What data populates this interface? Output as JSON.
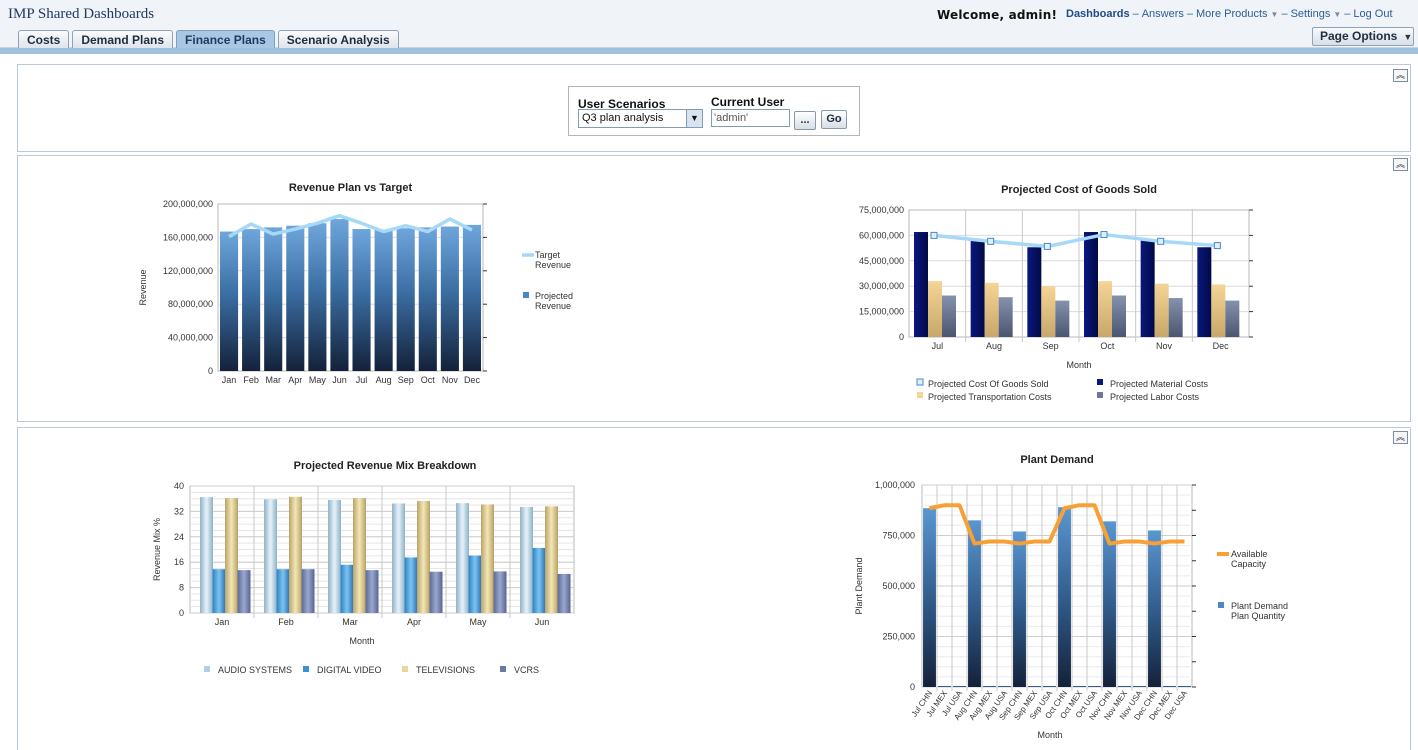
{
  "header": {
    "app_title": "IMP Shared Dashboards",
    "welcome": "Welcome, admin!",
    "links": [
      {
        "label": "Dashboards",
        "active": true,
        "caret": false
      },
      {
        "label": "Answers",
        "active": false,
        "caret": false
      },
      {
        "label": "More Products",
        "active": false,
        "caret": true
      },
      {
        "label": "Settings",
        "active": false,
        "caret": true
      },
      {
        "label": "Log Out",
        "active": false,
        "caret": false
      }
    ],
    "separator": "–",
    "caret_glyph": "▼"
  },
  "tabs": [
    {
      "label": "Costs",
      "selected": false
    },
    {
      "label": "Demand Plans",
      "selected": false
    },
    {
      "label": "Finance Plans",
      "selected": true
    },
    {
      "label": "Scenario Analysis",
      "selected": false
    }
  ],
  "page_options": {
    "label": "Page Options",
    "caret": "▼"
  },
  "prompt": {
    "scenario_label": "User Scenarios",
    "scenario_value": "Q3 plan analysis",
    "user_label": "Current User",
    "user_value": "'admin'",
    "browse_label": "...",
    "go_label": "Go"
  },
  "colors": {
    "accent": "#1f3a63",
    "tab_selected": "#a9c6e2",
    "bar_blue_top": "#5b9bd5",
    "bar_blue_bottom": "#1a2a44",
    "line_light_blue": "#9fd3f4",
    "line_orange": "#f7a035"
  },
  "chart_data": [
    {
      "type": "bar",
      "title": "Revenue Plan vs Target",
      "ylabel": "Revenue",
      "xlabel": "",
      "categories": [
        "Jan",
        "Feb",
        "Mar",
        "Apr",
        "May",
        "Jun",
        "Jul",
        "Aug",
        "Sep",
        "Oct",
        "Nov",
        "Dec"
      ],
      "ylim": [
        0,
        200000000
      ],
      "yticks": [
        "0",
        "40,000,000",
        "80,000,000",
        "120,000,000",
        "160,000,000",
        "200,000,000"
      ],
      "series": [
        {
          "name": "Projected Revenue",
          "kind": "bar",
          "values": [
            167000000,
            170000000,
            172000000,
            174000000,
            177000000,
            182000000,
            170000000,
            169000000,
            171000000,
            172000000,
            173000000,
            175000000
          ]
        },
        {
          "name": "Target Revenue",
          "kind": "line",
          "values": [
            161000000,
            176000000,
            164000000,
            170000000,
            177000000,
            186000000,
            177000000,
            167000000,
            174000000,
            167000000,
            182000000,
            169000000
          ]
        }
      ],
      "legend": [
        {
          "line1": "Target",
          "line2": "Revenue"
        },
        {
          "line1": "Projected",
          "line2": "Revenue"
        }
      ],
      "legend_position": "right"
    },
    {
      "type": "bar",
      "title": "Projected Cost of Goods Sold",
      "xlabel": "Month",
      "ylabel": "",
      "categories": [
        "Jul",
        "Aug",
        "Sep",
        "Oct",
        "Nov",
        "Dec"
      ],
      "ylim": [
        0,
        75000000
      ],
      "yticks": [
        "0",
        "15,000,000",
        "30,000,000",
        "45,000,000",
        "60,000,000",
        "75,000,000"
      ],
      "series": [
        {
          "name": "Projected Material Costs",
          "kind": "bar",
          "values": [
            62000000,
            57000000,
            53000000,
            62000000,
            57000000,
            53000000
          ]
        },
        {
          "name": "Projected Transportation Costs",
          "kind": "bar",
          "values": [
            33000000,
            32000000,
            30000000,
            33000000,
            31500000,
            31000000
          ]
        },
        {
          "name": "Projected Labor Costs",
          "kind": "bar",
          "values": [
            24500000,
            23500000,
            21500000,
            24500000,
            23000000,
            21500000
          ]
        },
        {
          "name": "Projected Cost Of Goods Sold",
          "kind": "line",
          "values": [
            60000000,
            56500000,
            53500000,
            60500000,
            56500000,
            54000000
          ]
        }
      ],
      "legend": [
        "Projected Cost Of Goods Sold",
        "Projected Material Costs",
        "Projected Transportation Costs",
        "Projected Labor Costs"
      ],
      "legend_position": "bottom"
    },
    {
      "type": "bar",
      "title": "Projected Revenue Mix Breakdown",
      "xlabel": "Month",
      "ylabel": "Revenue Mix %",
      "categories": [
        "Jan",
        "Feb",
        "Mar",
        "Apr",
        "May",
        "Jun"
      ],
      "ylim": [
        0,
        40
      ],
      "yticks": [
        "0",
        "8",
        "16",
        "24",
        "32",
        "40"
      ],
      "series": [
        {
          "name": "AUDIO SYSTEMS",
          "values": [
            36.5,
            35.8,
            35.6,
            34.5,
            34.6,
            33.4
          ]
        },
        {
          "name": "DIGITAL VIDEO",
          "values": [
            13.8,
            13.8,
            15.2,
            17.5,
            18.1,
            20.5
          ]
        },
        {
          "name": "TELEVISIONS",
          "values": [
            36.2,
            36.6,
            36.2,
            35.3,
            34.2,
            33.6
          ]
        },
        {
          "name": "VCRS",
          "values": [
            13.5,
            13.8,
            13.5,
            13.0,
            13.1,
            12.3
          ]
        }
      ],
      "legend_position": "bottom"
    },
    {
      "type": "bar",
      "title": "Plant Demand",
      "xlabel": "Month",
      "ylabel": "Plant Demand",
      "categories": [
        "Jul CHN",
        "Jul MEX",
        "Jul USA",
        "Aug CHN",
        "Aug MEX",
        "Aug USA",
        "Sep CHN",
        "Sep MEX",
        "Sep USA",
        "Oct CHN",
        "Oct MEX",
        "Oct USA",
        "Nov CHN",
        "Nov MEX",
        "Nov USA",
        "Dec CHN",
        "Dec MEX",
        "Dec USA"
      ],
      "ylim": [
        0,
        1000000
      ],
      "yticks": [
        "0",
        "250,000",
        "500,000",
        "750,000",
        "1,000,000"
      ],
      "series": [
        {
          "name": "Plant Demand Plan Quantity",
          "kind": "bar",
          "values": [
            885000,
            2000,
            2000,
            825000,
            2000,
            2000,
            770000,
            2000,
            2000,
            890000,
            2000,
            2000,
            820000,
            2000,
            2000,
            775000,
            2000,
            2000
          ]
        },
        {
          "name": "Available Capacity",
          "kind": "line",
          "values": [
            885000,
            900000,
            900000,
            710000,
            720000,
            720000,
            710000,
            720000,
            720000,
            885000,
            900000,
            900000,
            710000,
            720000,
            720000,
            710000,
            720000,
            720000
          ]
        }
      ],
      "legend": [
        {
          "line1": "Available",
          "line2": "Capacity"
        },
        {
          "line1": "Plant Demand",
          "line2": "Plan Quantity"
        }
      ],
      "legend_position": "right"
    }
  ]
}
